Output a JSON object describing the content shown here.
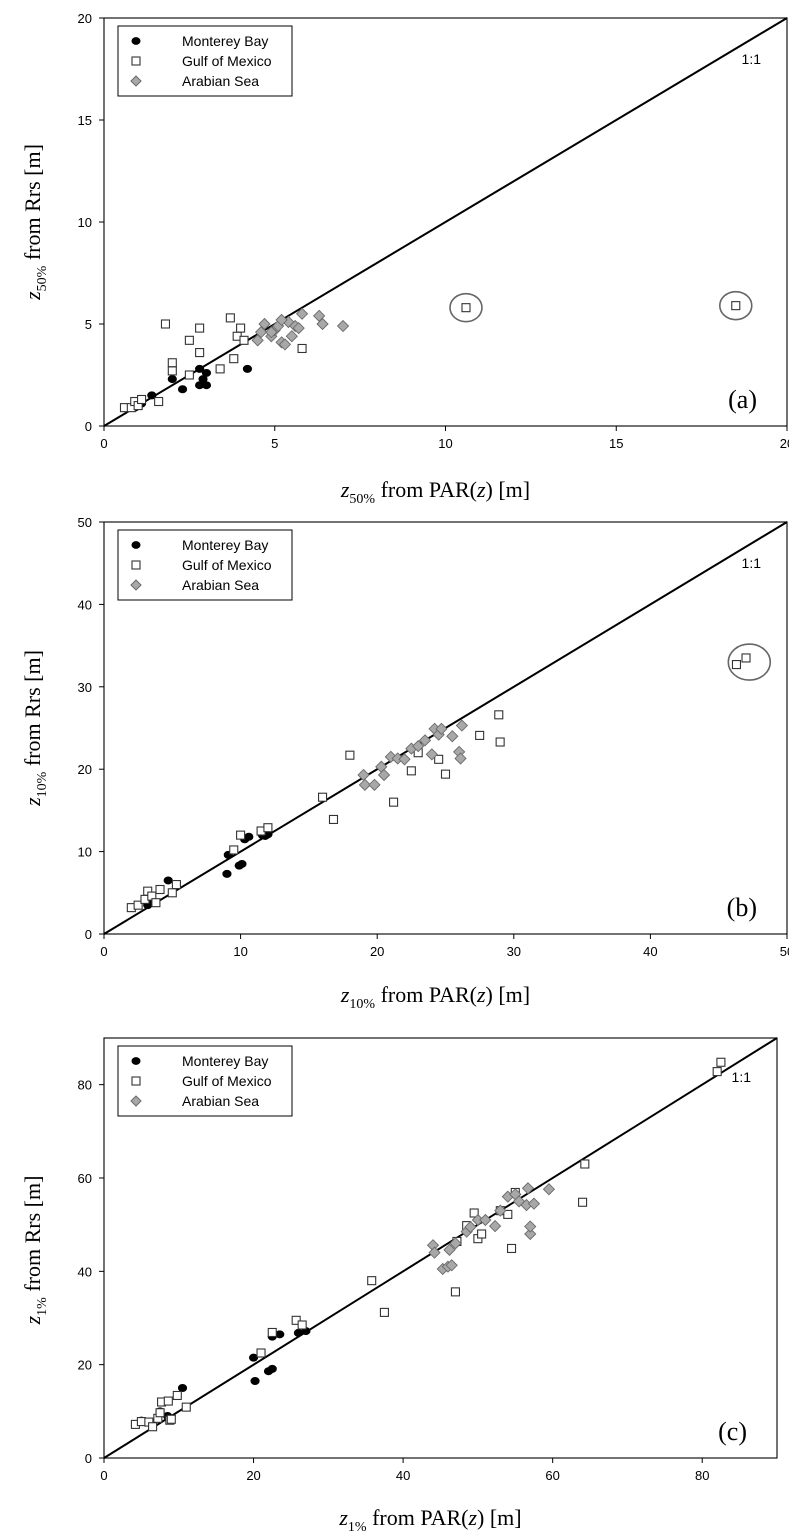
{
  "legend": {
    "monterey": "Monterey Bay",
    "gulf": "Gulf of Mexico",
    "arabian": "Arabian Sea"
  },
  "series_styles": {
    "monterey": {
      "marker": "filled-circle",
      "fill": "#000000",
      "stroke": "#000000"
    },
    "gulf": {
      "marker": "open-square",
      "fill": "#ffffff",
      "stroke": "#333333"
    },
    "arabian": {
      "marker": "diamond",
      "fill": "#a8a8a8",
      "stroke": "#6a6a6a"
    }
  },
  "chart_data": [
    {
      "type": "scatter",
      "panel_label": "(a)",
      "ref_label": "1:1",
      "xlabel": {
        "var": "z",
        "sub": "50%",
        "text": " from PAR(",
        "it": "z",
        "end": ") [m]"
      },
      "ylabel": {
        "var": "z",
        "sub": "50%",
        "text": " from Rrs [m]"
      },
      "xlim": [
        0,
        20
      ],
      "ylim": [
        0,
        20
      ],
      "xticks": [
        0,
        5,
        10,
        15,
        20
      ],
      "yticks": [
        0,
        5,
        10,
        15,
        20
      ],
      "legend_position": "top-left",
      "outliers_circled": [
        [
          10.6,
          5.8
        ],
        [
          18.5,
          5.9
        ]
      ],
      "series": {
        "monterey": [
          [
            0.9,
            0.9
          ],
          [
            1.0,
            1.2
          ],
          [
            1.1,
            1.1
          ],
          [
            1.4,
            1.5
          ],
          [
            2.0,
            2.3
          ],
          [
            2.3,
            1.8
          ],
          [
            2.8,
            2.8
          ],
          [
            2.9,
            2.3
          ],
          [
            3.0,
            2.6
          ],
          [
            2.8,
            2.0
          ],
          [
            3.0,
            2.0
          ],
          [
            4.2,
            2.8
          ]
        ],
        "gulf": [
          [
            0.6,
            0.9
          ],
          [
            0.8,
            0.9
          ],
          [
            0.9,
            1.2
          ],
          [
            1.0,
            1.0
          ],
          [
            1.1,
            1.3
          ],
          [
            1.6,
            1.2
          ],
          [
            1.8,
            5.0
          ],
          [
            2.0,
            3.1
          ],
          [
            2.0,
            2.7
          ],
          [
            2.5,
            2.5
          ],
          [
            2.5,
            4.2
          ],
          [
            2.8,
            3.6
          ],
          [
            2.8,
            4.8
          ],
          [
            3.4,
            2.8
          ],
          [
            3.7,
            5.3
          ],
          [
            3.8,
            3.3
          ],
          [
            3.9,
            4.4
          ],
          [
            4.0,
            4.8
          ],
          [
            4.1,
            4.2
          ],
          [
            5.8,
            3.8
          ],
          [
            10.6,
            5.8
          ],
          [
            18.5,
            5.9
          ]
        ],
        "arabian": [
          [
            4.5,
            4.2
          ],
          [
            4.6,
            4.6
          ],
          [
            4.7,
            5.0
          ],
          [
            4.9,
            4.4
          ],
          [
            5.0,
            4.7
          ],
          [
            5.1,
            4.9
          ],
          [
            5.2,
            4.1
          ],
          [
            5.3,
            4.0
          ],
          [
            5.4,
            5.1
          ],
          [
            5.5,
            4.4
          ],
          [
            5.6,
            4.9
          ],
          [
            5.7,
            4.8
          ],
          [
            5.8,
            5.5
          ],
          [
            6.3,
            5.4
          ],
          [
            6.4,
            5.0
          ],
          [
            7.0,
            4.9
          ],
          [
            4.9,
            4.6
          ],
          [
            5.2,
            5.2
          ]
        ]
      }
    },
    {
      "type": "scatter",
      "panel_label": "(b)",
      "ref_label": "1:1",
      "xlabel": {
        "var": "z",
        "sub": "10%",
        "text": " from PAR(",
        "it": "z",
        "end": ") [m]"
      },
      "ylabel": {
        "var": "z",
        "sub": "10%",
        "text": " from Rrs [m]"
      },
      "xlim": [
        0,
        50
      ],
      "ylim": [
        0,
        50
      ],
      "xticks": [
        0,
        10,
        20,
        30,
        40,
        50
      ],
      "yticks": [
        0,
        10,
        20,
        30,
        40,
        50
      ],
      "legend_position": "top-left",
      "outliers_circled": [
        [
          46.8,
          33.0
        ]
      ],
      "series": {
        "monterey": [
          [
            3.2,
            3.5
          ],
          [
            3.5,
            4.2
          ],
          [
            4.7,
            6.5
          ],
          [
            9.0,
            7.3
          ],
          [
            9.1,
            9.6
          ],
          [
            9.9,
            8.3
          ],
          [
            10.1,
            8.5
          ],
          [
            10.3,
            11.5
          ],
          [
            10.6,
            11.8
          ],
          [
            11.6,
            12.0
          ],
          [
            11.8,
            11.9
          ],
          [
            12.0,
            12.1
          ]
        ],
        "gulf": [
          [
            2.0,
            3.2
          ],
          [
            2.5,
            3.5
          ],
          [
            3.0,
            4.2
          ],
          [
            3.2,
            5.2
          ],
          [
            3.5,
            4.6
          ],
          [
            3.8,
            3.8
          ],
          [
            4.1,
            5.4
          ],
          [
            5.0,
            5.0
          ],
          [
            5.3,
            6.0
          ],
          [
            9.5,
            10.2
          ],
          [
            10.0,
            12.0
          ],
          [
            11.5,
            12.5
          ],
          [
            12.0,
            12.9
          ],
          [
            16.0,
            16.6
          ],
          [
            16.8,
            13.9
          ],
          [
            18.0,
            21.7
          ],
          [
            21.2,
            16.0
          ],
          [
            22.5,
            19.8
          ],
          [
            23.0,
            22.0
          ],
          [
            24.5,
            21.2
          ],
          [
            25.0,
            19.4
          ],
          [
            27.5,
            24.1
          ],
          [
            28.9,
            26.6
          ],
          [
            29.0,
            23.3
          ],
          [
            46.3,
            32.7
          ],
          [
            47.0,
            33.5
          ]
        ],
        "arabian": [
          [
            19.0,
            19.3
          ],
          [
            19.1,
            18.1
          ],
          [
            19.8,
            18.1
          ],
          [
            20.3,
            20.3
          ],
          [
            20.5,
            19.3
          ],
          [
            21.0,
            21.5
          ],
          [
            21.5,
            21.3
          ],
          [
            22.0,
            21.2
          ],
          [
            22.5,
            22.5
          ],
          [
            23.0,
            22.8
          ],
          [
            23.5,
            23.5
          ],
          [
            24.0,
            21.8
          ],
          [
            24.2,
            24.9
          ],
          [
            24.5,
            24.2
          ],
          [
            24.7,
            24.9
          ],
          [
            25.5,
            24.0
          ],
          [
            26.0,
            22.1
          ],
          [
            26.1,
            21.3
          ],
          [
            26.2,
            25.3
          ]
        ]
      }
    },
    {
      "type": "scatter",
      "panel_label": "(c)",
      "ref_label": "1:1",
      "xlabel": {
        "var": "z",
        "sub": "1%",
        "text": " from PAR(",
        "it": "z",
        "end": ") [m]"
      },
      "ylabel": {
        "var": "z",
        "sub": "1%",
        "text": " from Rrs [m]"
      },
      "xlim": [
        0,
        90
      ],
      "ylim": [
        0,
        90
      ],
      "xticks": [
        0,
        20,
        40,
        60,
        80
      ],
      "yticks": [
        0,
        20,
        40,
        60,
        80
      ],
      "legend_position": "top-left",
      "outliers_circled": [],
      "series": {
        "monterey": [
          [
            5.0,
            8.0
          ],
          [
            7.5,
            10.0
          ],
          [
            8.5,
            9.0
          ],
          [
            10.5,
            15.0
          ],
          [
            20.0,
            21.5
          ],
          [
            20.2,
            16.5
          ],
          [
            22.0,
            18.6
          ],
          [
            22.5,
            19.1
          ],
          [
            22.5,
            26.0
          ],
          [
            23.5,
            26.5
          ],
          [
            26.0,
            26.8
          ],
          [
            27.0,
            27.2
          ]
        ],
        "gulf": [
          [
            4.2,
            7.2
          ],
          [
            5.0,
            7.8
          ],
          [
            6.0,
            7.7
          ],
          [
            6.5,
            6.7
          ],
          [
            7.2,
            8.5
          ],
          [
            7.5,
            9.7
          ],
          [
            7.7,
            12.0
          ],
          [
            8.6,
            12.2
          ],
          [
            8.8,
            8.1
          ],
          [
            9.0,
            8.3
          ],
          [
            9.8,
            13.4
          ],
          [
            11.0,
            10.9
          ],
          [
            21.0,
            22.5
          ],
          [
            22.5,
            26.9
          ],
          [
            25.7,
            29.5
          ],
          [
            26.5,
            28.5
          ],
          [
            35.8,
            38.0
          ],
          [
            37.5,
            31.2
          ],
          [
            47.0,
            35.6
          ],
          [
            47.2,
            46.4
          ],
          [
            48.5,
            49.8
          ],
          [
            49.5,
            52.5
          ],
          [
            50.0,
            47.0
          ],
          [
            50.5,
            48.0
          ],
          [
            53.0,
            53.0
          ],
          [
            54.0,
            52.2
          ],
          [
            54.5,
            44.9
          ],
          [
            55.0,
            56.9
          ],
          [
            64.0,
            54.8
          ],
          [
            64.3,
            63.0
          ],
          [
            82.0,
            82.8
          ],
          [
            82.5,
            84.8
          ]
        ],
        "arabian": [
          [
            44.0,
            45.6
          ],
          [
            44.2,
            44.0
          ],
          [
            45.3,
            40.5
          ],
          [
            46.0,
            41.0
          ],
          [
            46.2,
            44.6
          ],
          [
            46.5,
            41.3
          ],
          [
            47.0,
            46.0
          ],
          [
            48.5,
            48.5
          ],
          [
            49.0,
            49.5
          ],
          [
            50.0,
            51.0
          ],
          [
            51.0,
            51.0
          ],
          [
            52.3,
            49.7
          ],
          [
            53.0,
            53.0
          ],
          [
            54.0,
            56.0
          ],
          [
            55.0,
            56.5
          ],
          [
            55.5,
            55.0
          ],
          [
            56.5,
            54.2
          ],
          [
            56.7,
            57.8
          ],
          [
            57.0,
            48.0
          ],
          [
            57.0,
            49.6
          ],
          [
            57.5,
            54.5
          ],
          [
            59.5,
            57.6
          ]
        ]
      }
    }
  ]
}
